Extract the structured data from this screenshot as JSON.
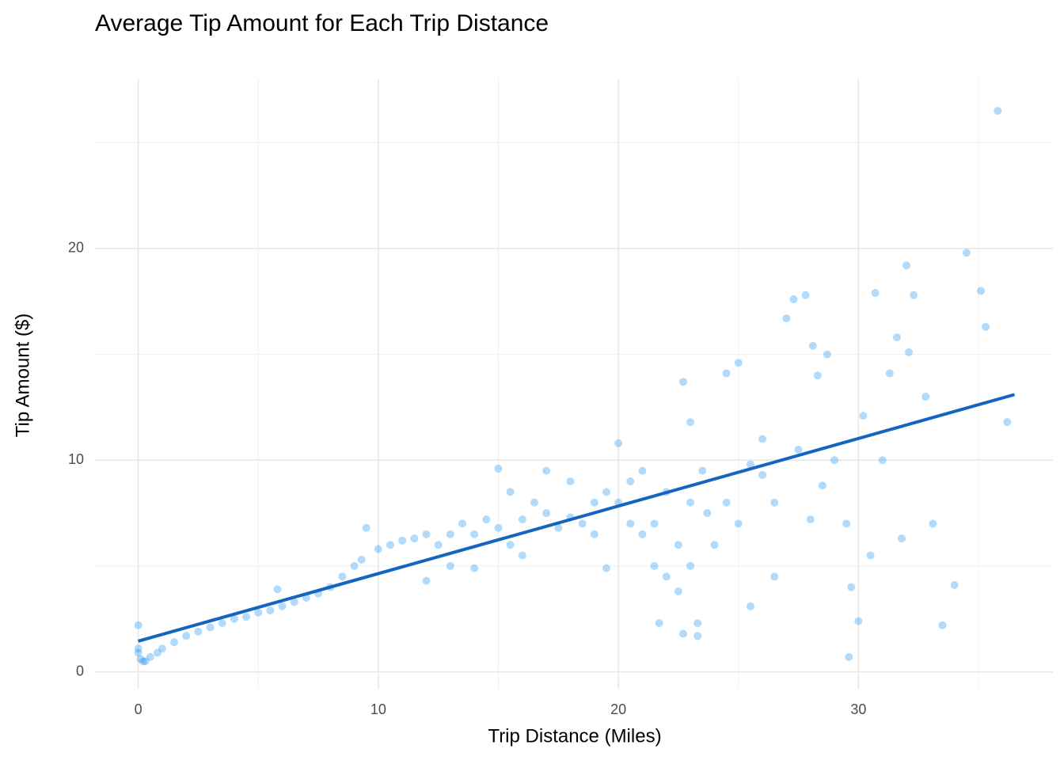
{
  "chart_data": {
    "type": "scatter",
    "title": "Average Tip Amount for Each Trip Distance",
    "x_label": "Trip Distance (Miles)",
    "y_label": "Tip Amount ($)",
    "color": "#2196f3",
    "x": [
      0,
      0,
      0,
      0.1,
      0.2,
      0.3,
      0.5,
      0.8,
      1,
      1.5,
      2,
      2.5,
      3,
      3.5,
      4,
      4.5,
      5,
      5.5,
      6,
      5.8,
      6.5,
      7,
      7.5,
      8,
      8.5,
      9,
      9.3,
      9.5,
      10,
      10.5,
      11,
      11.5,
      12,
      12,
      12.5,
      13,
      13,
      13.5,
      14,
      14,
      14.5,
      15,
      15,
      15.5,
      15.5,
      16,
      16,
      16.5,
      17,
      17,
      17.5,
      18,
      18,
      18.5,
      19,
      19,
      19.5,
      19.5,
      20,
      20,
      20.5,
      20.5,
      21,
      21,
      21.5,
      21.5,
      21.7,
      22,
      22,
      22.5,
      22.5,
      22.7,
      22.7,
      23,
      23,
      23,
      23.3,
      23.3,
      23.5,
      23.7,
      24,
      24.5,
      24.5,
      25,
      25,
      25.5,
      25.5,
      26,
      26,
      26.5,
      26.5,
      27,
      27.3,
      27.5,
      27.8,
      28,
      28.1,
      28.3,
      28.5,
      28.7,
      29,
      29.5,
      29.6,
      29.7,
      30,
      30.2,
      30.5,
      30.7,
      31,
      31.3,
      31.6,
      31.8,
      32,
      32.1,
      32.3,
      32.8,
      33.1,
      33.5,
      34,
      34.5,
      35.1,
      35.3,
      35.8,
      36.2
    ],
    "y": [
      2.2,
      1.1,
      0.9,
      0.6,
      0.5,
      0.5,
      0.7,
      0.9,
      1.1,
      1.4,
      1.7,
      1.9,
      2.1,
      2.3,
      2.5,
      2.6,
      2.8,
      2.9,
      3.1,
      3.9,
      3.3,
      3.5,
      3.7,
      4.0,
      4.5,
      5.0,
      5.3,
      6.8,
      5.8,
      6.0,
      6.2,
      6.3,
      6.5,
      4.3,
      6.0,
      6.5,
      5.0,
      7.0,
      6.5,
      4.9,
      7.2,
      6.8,
      9.6,
      6.0,
      8.5,
      7.2,
      5.5,
      8.0,
      7.5,
      9.5,
      6.8,
      7.3,
      9.0,
      7.0,
      8.0,
      6.5,
      8.5,
      4.9,
      8.0,
      10.8,
      9.0,
      7.0,
      9.5,
      6.5,
      7.0,
      5.0,
      2.3,
      8.5,
      4.5,
      6.0,
      3.8,
      13.7,
      1.8,
      8.0,
      5.0,
      11.8,
      2.3,
      1.7,
      9.5,
      7.5,
      6.0,
      14.1,
      8.0,
      14.6,
      7.0,
      9.8,
      3.1,
      11.0,
      9.3,
      8.0,
      4.5,
      16.7,
      17.6,
      10.5,
      17.8,
      7.2,
      15.4,
      14.0,
      8.8,
      15.0,
      10.0,
      7.0,
      0.7,
      4.0,
      2.4,
      12.1,
      5.5,
      17.9,
      10.0,
      14.1,
      15.8,
      6.3,
      19.2,
      15.1,
      17.8,
      13.0,
      7.0,
      2.2,
      4.1,
      19.8,
      18.0,
      16.3,
      26.5,
      11.8
    ],
    "fit_line": {
      "x": [
        0,
        36.5
      ],
      "y": [
        1.45,
        13.1
      ],
      "color": "#1565c0"
    },
    "xlim": [
      -1.8,
      38.1
    ],
    "ylim": [
      -0.8,
      28
    ],
    "xticks": [
      0,
      10,
      20,
      30
    ],
    "yticks": [
      0,
      10,
      20
    ],
    "x_minor_grid": [
      5,
      15,
      25,
      35
    ],
    "y_minor_grid": [
      5,
      15,
      25
    ],
    "grid": true
  }
}
